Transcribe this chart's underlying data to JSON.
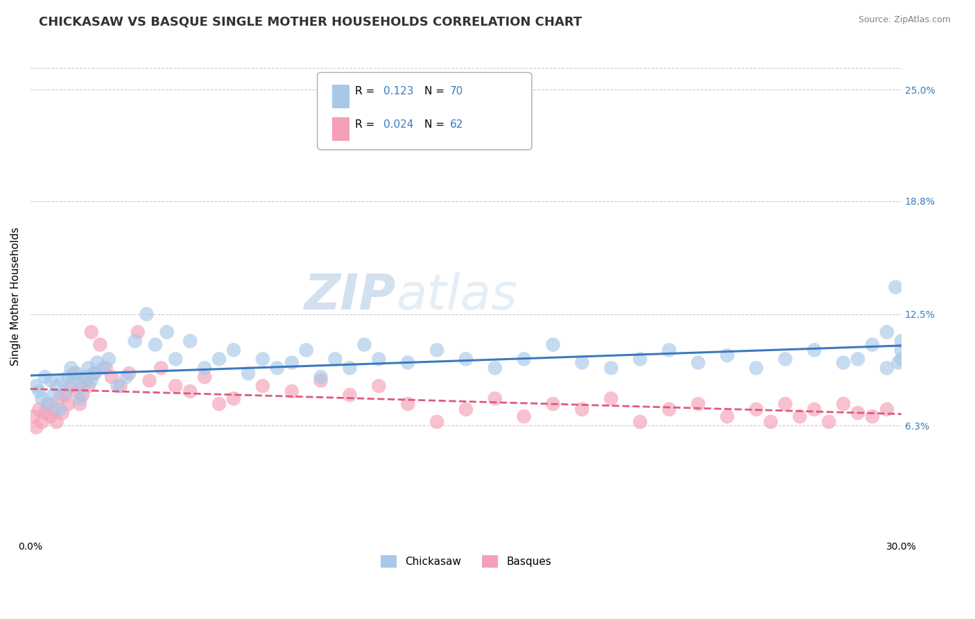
{
  "title": "CHICKASAW VS BASQUE SINGLE MOTHER HOUSEHOLDS CORRELATION CHART",
  "source_text": "Source: ZipAtlas.com",
  "ylabel": "Single Mother Households",
  "xlim": [
    0.0,
    0.3
  ],
  "ylim": [
    0.0,
    0.27
  ],
  "xtick_labels": [
    "0.0%",
    "30.0%"
  ],
  "ytick_labels": [
    "6.3%",
    "12.5%",
    "18.8%",
    "25.0%"
  ],
  "ytick_values": [
    0.063,
    0.125,
    0.188,
    0.25
  ],
  "color_blue": "#a8c8e8",
  "color_pink": "#f4a0b8",
  "line_color_blue": "#3a7abf",
  "line_color_pink": "#e05a7a",
  "grid_color": "#cccccc",
  "title_color": "#333333",
  "legend_label_blue": "Chickasaw",
  "legend_label_pink": "Basques",
  "title_fontsize": 13,
  "axis_label_fontsize": 11,
  "tick_fontsize": 10,
  "chickasaw_x": [
    0.002,
    0.003,
    0.004,
    0.005,
    0.006,
    0.007,
    0.008,
    0.009,
    0.01,
    0.011,
    0.012,
    0.013,
    0.014,
    0.015,
    0.016,
    0.017,
    0.018,
    0.019,
    0.02,
    0.021,
    0.022,
    0.023,
    0.025,
    0.027,
    0.03,
    0.033,
    0.036,
    0.04,
    0.043,
    0.047,
    0.05,
    0.055,
    0.06,
    0.065,
    0.07,
    0.075,
    0.08,
    0.085,
    0.09,
    0.095,
    0.1,
    0.105,
    0.11,
    0.115,
    0.12,
    0.13,
    0.14,
    0.15,
    0.16,
    0.17,
    0.18,
    0.19,
    0.2,
    0.21,
    0.22,
    0.23,
    0.24,
    0.25,
    0.26,
    0.27,
    0.28,
    0.285,
    0.29,
    0.295,
    0.295,
    0.298,
    0.299,
    0.3,
    0.3,
    0.3
  ],
  "chickasaw_y": [
    0.085,
    0.082,
    0.078,
    0.09,
    0.075,
    0.088,
    0.08,
    0.085,
    0.072,
    0.088,
    0.082,
    0.09,
    0.095,
    0.088,
    0.092,
    0.078,
    0.085,
    0.09,
    0.095,
    0.088,
    0.092,
    0.098,
    0.095,
    0.1,
    0.085,
    0.09,
    0.11,
    0.125,
    0.108,
    0.115,
    0.1,
    0.11,
    0.095,
    0.1,
    0.105,
    0.092,
    0.1,
    0.095,
    0.098,
    0.105,
    0.09,
    0.1,
    0.095,
    0.108,
    0.1,
    0.098,
    0.105,
    0.1,
    0.095,
    0.1,
    0.108,
    0.098,
    0.095,
    0.1,
    0.105,
    0.098,
    0.102,
    0.095,
    0.1,
    0.105,
    0.098,
    0.1,
    0.108,
    0.095,
    0.115,
    0.14,
    0.098,
    0.1,
    0.105,
    0.11
  ],
  "basque_x": [
    0.001,
    0.002,
    0.003,
    0.004,
    0.005,
    0.006,
    0.007,
    0.008,
    0.009,
    0.01,
    0.011,
    0.012,
    0.013,
    0.014,
    0.015,
    0.016,
    0.017,
    0.018,
    0.019,
    0.02,
    0.021,
    0.022,
    0.024,
    0.026,
    0.028,
    0.031,
    0.034,
    0.037,
    0.041,
    0.045,
    0.05,
    0.055,
    0.06,
    0.065,
    0.07,
    0.08,
    0.09,
    0.1,
    0.11,
    0.12,
    0.13,
    0.14,
    0.15,
    0.16,
    0.17,
    0.18,
    0.19,
    0.2,
    0.21,
    0.22,
    0.23,
    0.24,
    0.25,
    0.255,
    0.26,
    0.265,
    0.27,
    0.275,
    0.28,
    0.285,
    0.29,
    0.295
  ],
  "basque_y": [
    0.068,
    0.062,
    0.072,
    0.065,
    0.07,
    0.075,
    0.068,
    0.072,
    0.065,
    0.078,
    0.07,
    0.08,
    0.075,
    0.085,
    0.092,
    0.082,
    0.075,
    0.08,
    0.088,
    0.085,
    0.115,
    0.092,
    0.108,
    0.095,
    0.09,
    0.085,
    0.092,
    0.115,
    0.088,
    0.095,
    0.085,
    0.082,
    0.09,
    0.075,
    0.078,
    0.085,
    0.082,
    0.088,
    0.08,
    0.085,
    0.075,
    0.065,
    0.072,
    0.078,
    0.068,
    0.075,
    0.072,
    0.078,
    0.065,
    0.072,
    0.075,
    0.068,
    0.072,
    0.065,
    0.075,
    0.068,
    0.072,
    0.065,
    0.075,
    0.07,
    0.068,
    0.072
  ]
}
